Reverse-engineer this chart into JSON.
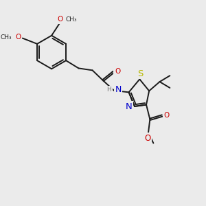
{
  "bg_color": "#ebebeb",
  "bond_color": "#1a1a1a",
  "S_color": "#b8b800",
  "N_color": "#0000cc",
  "O_color": "#cc0000",
  "H_color": "#707070",
  "lw": 1.4,
  "fs": 7.5,
  "fss": 6.5,
  "xlim": [
    0,
    10
  ],
  "ylim": [
    0,
    10
  ]
}
